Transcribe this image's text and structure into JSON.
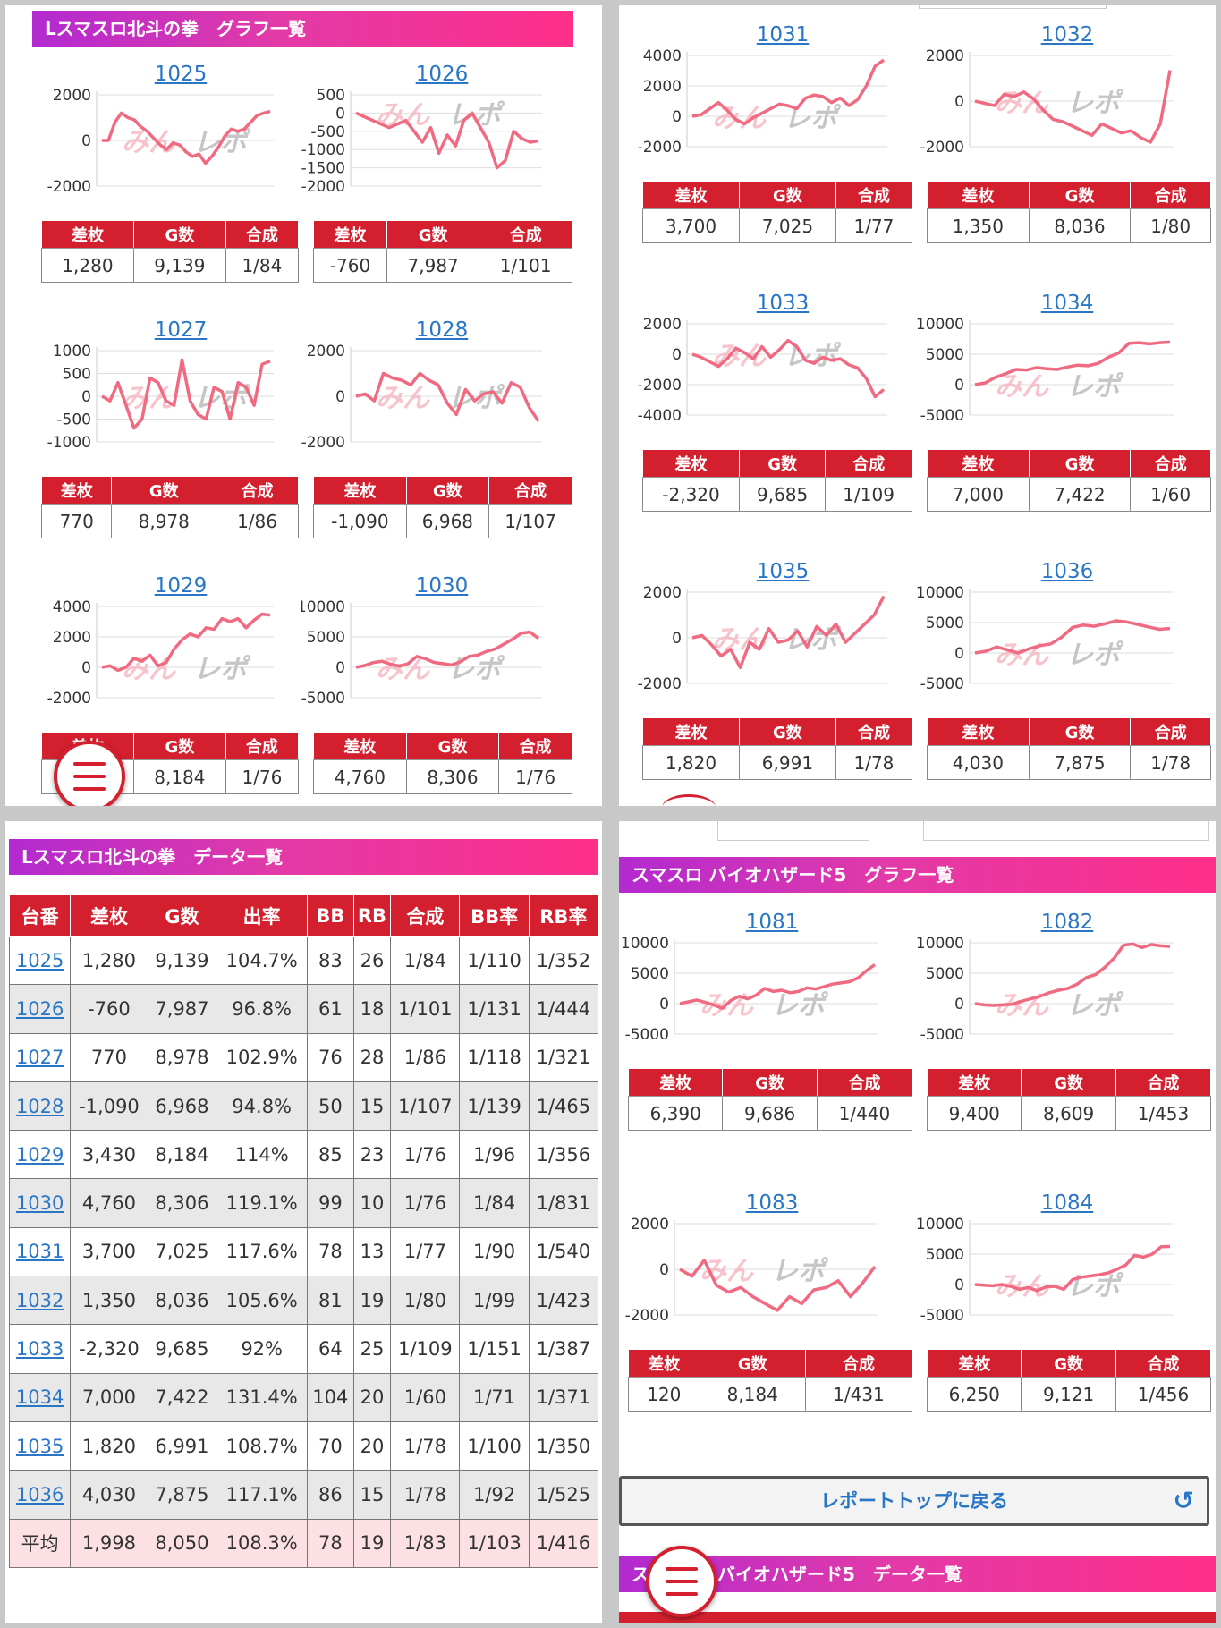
{
  "panels": {
    "hokuto_graph_title": "Lスマスロ北斗の拳　グラフ一覧",
    "hokuto_data_title": "Lスマスロ北斗の拳　データ一覧",
    "bio_graph_title": "スマスロ バイオハザード5　グラフ一覧",
    "bio_data_title": "バイオハザード5　データ一覧",
    "bio_data_title_prefix": "ス"
  },
  "mini_headers": [
    "差枚",
    "G数",
    "合成"
  ],
  "back_button_label": "レポートトップに戻る",
  "watermark_left": "みん",
  "watermark_right": "レポ",
  "colors": {
    "accent": "#d4202e",
    "line": "#f06a82",
    "link": "#2a76c6"
  },
  "icons": {
    "menu": "hamburger-icon",
    "back": "undo-icon"
  },
  "machines": [
    {
      "id": "1025",
      "sa": "1,280",
      "g": "9,139",
      "gousei": "1/84",
      "ticks": [
        2000,
        0,
        -2000
      ],
      "ylim": [
        -2000,
        2000
      ],
      "series": [
        0,
        0,
        800,
        1200,
        1000,
        900,
        600,
        400,
        100,
        -200,
        -400,
        -100,
        -200,
        -500,
        -700,
        -600,
        -1000,
        -700,
        -300,
        200,
        500,
        400,
        500,
        800,
        1100,
        1200,
        1280
      ]
    },
    {
      "id": "1026",
      "sa": "-760",
      "g": "7,987",
      "gousei": "1/101",
      "ticks": [
        500,
        0,
        -500,
        -1000,
        -1500,
        -2000
      ],
      "ylim": [
        -2000,
        500
      ],
      "series": [
        0,
        -100,
        -200,
        -300,
        -400,
        -300,
        -200,
        -500,
        -800,
        -400,
        -1100,
        -600,
        -900,
        -200,
        0,
        -400,
        -800,
        -1500,
        -1300,
        -500,
        -700,
        -800,
        -760
      ]
    },
    {
      "id": "1027",
      "sa": "770",
      "g": "8,978",
      "gousei": "1/86",
      "ticks": [
        1000,
        500,
        0,
        -500,
        -1000
      ],
      "ylim": [
        -1000,
        1000
      ],
      "series": [
        0,
        -100,
        300,
        -200,
        -700,
        -500,
        400,
        300,
        -100,
        -200,
        800,
        -100,
        -400,
        -500,
        200,
        100,
        -500,
        300,
        200,
        -200,
        700,
        770
      ]
    },
    {
      "id": "1028",
      "sa": "-1,090",
      "g": "6,968",
      "gousei": "1/107",
      "ticks": [
        2000,
        0,
        -2000
      ],
      "ylim": [
        -2000,
        2000
      ],
      "series": [
        0,
        100,
        -200,
        1000,
        800,
        700,
        500,
        1000,
        700,
        500,
        -300,
        -800,
        300,
        -200,
        100,
        200,
        -300,
        600,
        400,
        -500,
        -1090
      ]
    },
    {
      "id": "1029",
      "sa": "3,430",
      "g": "8,184",
      "gousei": "1/76",
      "ticks": [
        4000,
        2000,
        0,
        -2000
      ],
      "ylim": [
        -2000,
        4000
      ],
      "series": [
        0,
        100,
        -200,
        0,
        600,
        400,
        800,
        100,
        300,
        1200,
        1800,
        2200,
        2000,
        2600,
        2500,
        3200,
        3000,
        3200,
        2600,
        3100,
        3500,
        3430
      ]
    },
    {
      "id": "1030",
      "sa": "4,760",
      "g": "8,306",
      "gousei": "1/76",
      "ticks": [
        10000,
        5000,
        0,
        -5000
      ],
      "ylim": [
        -5000,
        10000
      ],
      "series": [
        0,
        300,
        800,
        1000,
        500,
        200,
        600,
        1800,
        1400,
        800,
        600,
        400,
        900,
        1800,
        2000,
        2600,
        3000,
        3800,
        4600,
        5600,
        5800,
        4760
      ]
    },
    {
      "id": "1031",
      "sa": "3,700",
      "g": "7,025",
      "gousei": "1/77",
      "ticks": [
        4000,
        2000,
        0,
        -2000
      ],
      "ylim": [
        -2000,
        4000
      ],
      "series": [
        0,
        100,
        500,
        900,
        400,
        -200,
        -500,
        -100,
        200,
        500,
        800,
        700,
        500,
        1200,
        1400,
        1300,
        900,
        1200,
        700,
        1100,
        2000,
        3300,
        3700
      ]
    },
    {
      "id": "1032",
      "sa": "1,350",
      "g": "8,036",
      "gousei": "1/80",
      "ticks": [
        2000,
        0,
        -2000
      ],
      "ylim": [
        -2000,
        2000
      ],
      "series": [
        0,
        -100,
        -200,
        300,
        200,
        400,
        100,
        -400,
        -800,
        -900,
        -1100,
        -1300,
        -1500,
        -1000,
        -1200,
        -1400,
        -1300,
        -1600,
        -1800,
        -1000,
        1350
      ]
    },
    {
      "id": "1033",
      "sa": "-2,320",
      "g": "9,685",
      "gousei": "1/109",
      "ticks": [
        2000,
        0,
        -2000,
        -4000
      ],
      "ylim": [
        -4000,
        2000
      ],
      "series": [
        0,
        -200,
        -500,
        -800,
        -300,
        400,
        100,
        -300,
        500,
        -200,
        300,
        900,
        500,
        -400,
        -600,
        -200,
        -400,
        -300,
        -700,
        -900,
        -1600,
        -2800,
        -2320
      ]
    },
    {
      "id": "1034",
      "sa": "7,000",
      "g": "7,422",
      "gousei": "1/60",
      "ticks": [
        10000,
        5000,
        0,
        -5000
      ],
      "ylim": [
        -5000,
        10000
      ],
      "series": [
        0,
        300,
        1200,
        1800,
        2500,
        2400,
        2800,
        2600,
        2500,
        2900,
        3200,
        3100,
        3500,
        4500,
        5200,
        6800,
        6900,
        6700,
        6900,
        7000
      ]
    },
    {
      "id": "1035",
      "sa": "1,820",
      "g": "6,991",
      "gousei": "1/78",
      "ticks": [
        2000,
        0,
        -2000
      ],
      "ylim": [
        -2000,
        2000
      ],
      "series": [
        0,
        100,
        -300,
        -800,
        -500,
        -1300,
        -200,
        -500,
        400,
        -200,
        -100,
        300,
        -400,
        500,
        100,
        600,
        -200,
        200,
        600,
        1000,
        1820
      ]
    },
    {
      "id": "1036",
      "sa": "4,030",
      "g": "7,875",
      "gousei": "1/78",
      "ticks": [
        10000,
        5000,
        0,
        -5000
      ],
      "ylim": [
        -5000,
        10000
      ],
      "series": [
        0,
        300,
        1000,
        500,
        0,
        700,
        1200,
        1500,
        2600,
        4200,
        4600,
        4400,
        4800,
        5300,
        5100,
        4700,
        4300,
        3900,
        4030
      ]
    },
    {
      "id": "1081",
      "sa": "6,390",
      "g": "9,686",
      "gousei": "1/440",
      "ticks": [
        10000,
        5000,
        0,
        -5000
      ],
      "ylim": [
        -5000,
        10000
      ],
      "series": [
        0,
        300,
        600,
        200,
        -200,
        -800,
        500,
        1200,
        800,
        1400,
        2500,
        2000,
        2200,
        1800,
        2000,
        2600,
        2400,
        2800,
        3200,
        3400,
        3600,
        4200,
        5400,
        6390
      ]
    },
    {
      "id": "1082",
      "sa": "9,400",
      "g": "8,609",
      "gousei": "1/453",
      "ticks": [
        10000,
        5000,
        0,
        -5000
      ],
      "ylim": [
        -5000,
        10000
      ],
      "series": [
        0,
        -200,
        -300,
        -200,
        -100,
        400,
        800,
        1200,
        1800,
        2200,
        2500,
        3200,
        4300,
        4800,
        6000,
        7500,
        9600,
        9800,
        9200,
        9700,
        9500,
        9400
      ]
    },
    {
      "id": "1083",
      "sa": "120",
      "g": "8,184",
      "gousei": "1/431",
      "ticks": [
        2000,
        0,
        -2000
      ],
      "ylim": [
        -2000,
        2000
      ],
      "series": [
        0,
        -300,
        400,
        -700,
        -1000,
        -800,
        -1200,
        -1500,
        -1800,
        -1200,
        -1500,
        -900,
        -800,
        -500,
        -1200,
        -600,
        120
      ]
    },
    {
      "id": "1084",
      "sa": "6,250",
      "g": "9,121",
      "gousei": "1/456",
      "ticks": [
        10000,
        5000,
        0,
        -5000
      ],
      "ylim": [
        -5000,
        10000
      ],
      "series": [
        0,
        -100,
        -200,
        0,
        -300,
        -800,
        -500,
        -1000,
        -400,
        -300,
        -800,
        800,
        1200,
        1400,
        1600,
        1900,
        2500,
        3200,
        4800,
        4500,
        5000,
        6200,
        6250
      ]
    }
  ],
  "data_table": {
    "headers": [
      "台番",
      "差枚",
      "G数",
      "出率",
      "BB",
      "RB",
      "合成",
      "BB率",
      "RB率"
    ],
    "rows": [
      [
        "1025",
        "1,280",
        "9,139",
        "104.7%",
        "83",
        "26",
        "1/84",
        "1/110",
        "1/352"
      ],
      [
        "1026",
        "-760",
        "7,987",
        "96.8%",
        "61",
        "18",
        "1/101",
        "1/131",
        "1/444"
      ],
      [
        "1027",
        "770",
        "8,978",
        "102.9%",
        "76",
        "28",
        "1/86",
        "1/118",
        "1/321"
      ],
      [
        "1028",
        "-1,090",
        "6,968",
        "94.8%",
        "50",
        "15",
        "1/107",
        "1/139",
        "1/465"
      ],
      [
        "1029",
        "3,430",
        "8,184",
        "114%",
        "85",
        "23",
        "1/76",
        "1/96",
        "1/356"
      ],
      [
        "1030",
        "4,760",
        "8,306",
        "119.1%",
        "99",
        "10",
        "1/76",
        "1/84",
        "1/831"
      ],
      [
        "1031",
        "3,700",
        "7,025",
        "117.6%",
        "78",
        "13",
        "1/77",
        "1/90",
        "1/540"
      ],
      [
        "1032",
        "1,350",
        "8,036",
        "105.6%",
        "81",
        "19",
        "1/80",
        "1/99",
        "1/423"
      ],
      [
        "1033",
        "-2,320",
        "9,685",
        "92%",
        "64",
        "25",
        "1/109",
        "1/151",
        "1/387"
      ],
      [
        "1034",
        "7,000",
        "7,422",
        "131.4%",
        "104",
        "20",
        "1/60",
        "1/71",
        "1/371"
      ],
      [
        "1035",
        "1,820",
        "6,991",
        "108.7%",
        "70",
        "20",
        "1/78",
        "1/100",
        "1/350"
      ],
      [
        "1036",
        "4,030",
        "7,875",
        "117.1%",
        "86",
        "15",
        "1/78",
        "1/92",
        "1/525"
      ]
    ],
    "average": [
      "平均",
      "1,998",
      "8,050",
      "108.3%",
      "78",
      "19",
      "1/83",
      "1/103",
      "1/416"
    ]
  }
}
